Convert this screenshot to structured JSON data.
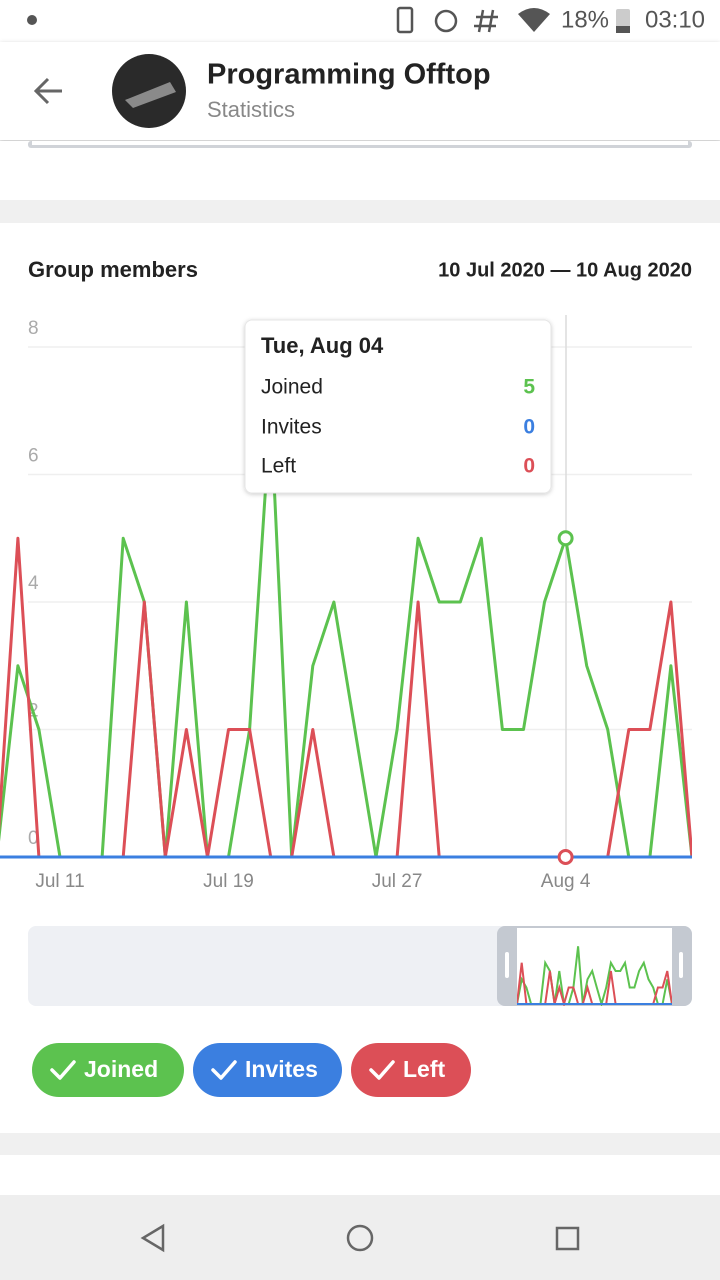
{
  "status_bar": {
    "battery": "18%",
    "time": "03:10"
  },
  "header": {
    "title": "Programming Offtop",
    "subtitle": "Statistics"
  },
  "card": {
    "title": "Group members",
    "date_range": "10 Jul 2020 — 10 Aug 2020"
  },
  "tooltip": {
    "date": "Tue, Aug 04"
  },
  "chart_data": {
    "type": "line",
    "categories": [
      null,
      null,
      null,
      "Jul 11",
      null,
      null,
      null,
      null,
      null,
      null,
      null,
      "Jul 19",
      null,
      null,
      null,
      null,
      null,
      null,
      null,
      "Jul 27",
      null,
      null,
      null,
      null,
      null,
      null,
      null,
      "Aug 4",
      null,
      null,
      null,
      null,
      null,
      null
    ],
    "series": [
      {
        "name": "Joined",
        "color": "#5cc24f",
        "values": [
          0,
          3,
          2,
          0,
          0,
          0,
          5,
          4,
          0,
          4,
          0,
          0,
          2,
          7,
          0,
          3,
          4,
          2,
          0,
          2,
          5,
          4,
          4,
          5,
          2,
          2,
          4,
          5,
          3,
          2,
          0,
          0,
          3,
          0
        ]
      },
      {
        "name": "Invites",
        "color": "#3b7fe0",
        "values": [
          0,
          0,
          0,
          0,
          0,
          0,
          0,
          0,
          0,
          0,
          0,
          0,
          0,
          0,
          0,
          0,
          0,
          0,
          0,
          0,
          0,
          0,
          0,
          0,
          0,
          0,
          0,
          0,
          0,
          0,
          0,
          0,
          0,
          0
        ]
      },
      {
        "name": "Left",
        "color": "#dc4f57",
        "values": [
          0,
          5,
          0,
          0,
          0,
          0,
          0,
          4,
          0,
          2,
          0,
          2,
          2,
          0,
          0,
          2,
          0,
          0,
          0,
          0,
          4,
          0,
          0,
          0,
          0,
          0,
          0,
          0,
          0,
          0,
          2,
          2,
          4,
          0
        ]
      }
    ],
    "ylim": [
      0,
      8
    ],
    "yticks": [
      0,
      2,
      4,
      6,
      8
    ],
    "grid": true
  }
}
